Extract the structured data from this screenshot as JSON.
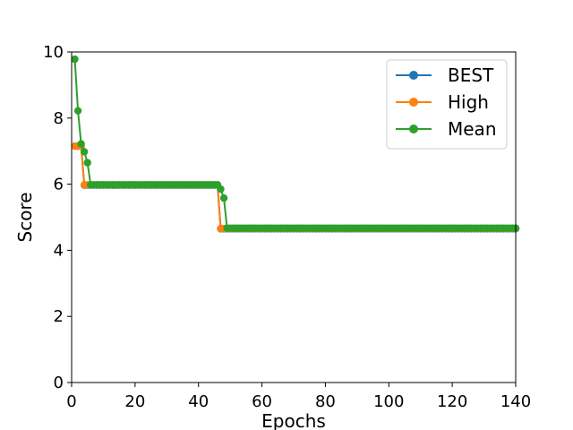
{
  "chart_data": {
    "type": "line",
    "xlabel": "Epochs",
    "ylabel": "Score",
    "xlim": [
      0,
      140
    ],
    "ylim": [
      0,
      10
    ],
    "xticks": [
      0,
      20,
      40,
      60,
      80,
      100,
      120,
      140
    ],
    "yticks": [
      0,
      2,
      4,
      6,
      8,
      10
    ],
    "grid": false,
    "legend_position": "top-right",
    "series": [
      {
        "name": "BEST",
        "color": "#1f77b4",
        "marker": "circle",
        "segments": [
          {
            "x_start": 1,
            "x_end": 2,
            "y": 7.15
          },
          {
            "x_start": 3,
            "x_end": 3,
            "y": 7.15
          },
          {
            "x_start": 4,
            "x_end": 46,
            "y": 5.97
          },
          {
            "x_start": 47,
            "x_end": 140,
            "y": 4.65
          }
        ]
      },
      {
        "name": "High",
        "color": "#ff7f0e",
        "marker": "circle",
        "segments": [
          {
            "x_start": 1,
            "x_end": 3,
            "y": 7.15
          },
          {
            "x_start": 4,
            "x_end": 46,
            "y": 5.98
          },
          {
            "x_start": 47,
            "x_end": 140,
            "y": 4.66
          }
        ]
      },
      {
        "name": "Mean",
        "color": "#2ca02c",
        "marker": "circle",
        "points_head": [
          [
            1,
            9.78
          ],
          [
            2,
            8.22
          ],
          [
            3,
            7.22
          ],
          [
            4,
            6.98
          ],
          [
            5,
            6.65
          ]
        ],
        "segments": [
          {
            "x_start": 6,
            "x_end": 46,
            "y": 5.98
          },
          {
            "x_start": 49,
            "x_end": 140,
            "y": 4.67
          }
        ],
        "points_transition": [
          [
            47,
            5.85
          ],
          [
            48,
            5.58
          ]
        ]
      }
    ]
  }
}
